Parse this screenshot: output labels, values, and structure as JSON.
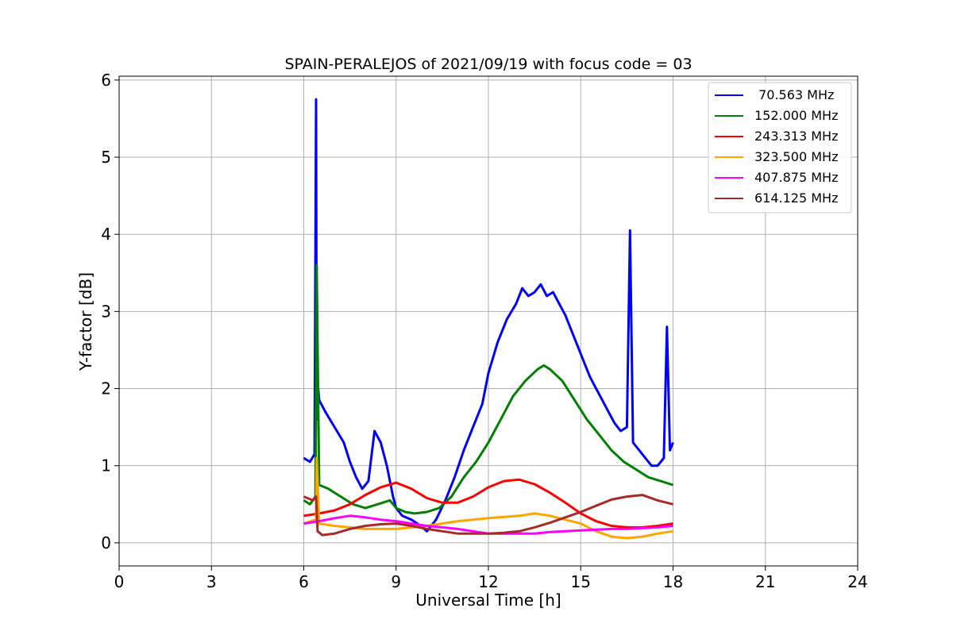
{
  "chart_data": {
    "type": "line",
    "title": "SPAIN-PERALEJOS of 2021/09/19 with focus code = 03",
    "xlabel": "Universal Time [h]",
    "ylabel": "Y-factor [dB]",
    "xlim": [
      0,
      24
    ],
    "ylim": [
      -0.3,
      6.05
    ],
    "xticks": [
      0,
      3,
      6,
      9,
      12,
      15,
      18,
      21,
      24
    ],
    "yticks": [
      0,
      1,
      2,
      3,
      4,
      5,
      6
    ],
    "grid": true,
    "legend_position": "top-right",
    "series": [
      {
        "name": " 70.563 MHz",
        "color": "#0000ff",
        "x": [
          6.0,
          6.2,
          6.35,
          6.4,
          6.42,
          6.45,
          6.5,
          6.7,
          7.0,
          7.3,
          7.5,
          7.7,
          7.9,
          8.1,
          8.3,
          8.5,
          8.7,
          8.9,
          9.0,
          9.2,
          9.5,
          9.8,
          10.0,
          10.3,
          10.6,
          10.9,
          11.2,
          11.5,
          11.8,
          12.0,
          12.3,
          12.6,
          12.9,
          13.1,
          13.3,
          13.5,
          13.7,
          13.9,
          14.1,
          14.3,
          14.5,
          14.7,
          14.9,
          15.1,
          15.3,
          15.5,
          15.7,
          15.9,
          16.1,
          16.3,
          16.5,
          16.6,
          16.7,
          16.9,
          17.1,
          17.3,
          17.5,
          17.7,
          17.8,
          17.9,
          18.0
        ],
        "y": [
          1.1,
          1.05,
          1.15,
          5.75,
          1.6,
          2.1,
          1.85,
          1.7,
          1.5,
          1.3,
          1.05,
          0.85,
          0.7,
          0.8,
          1.45,
          1.3,
          1.0,
          0.6,
          0.45,
          0.35,
          0.3,
          0.22,
          0.15,
          0.3,
          0.55,
          0.85,
          1.2,
          1.5,
          1.8,
          2.2,
          2.6,
          2.9,
          3.1,
          3.3,
          3.2,
          3.25,
          3.35,
          3.2,
          3.25,
          3.1,
          2.95,
          2.75,
          2.55,
          2.35,
          2.15,
          2.0,
          1.85,
          1.7,
          1.55,
          1.45,
          1.5,
          4.05,
          1.3,
          1.2,
          1.1,
          1.0,
          1.0,
          1.1,
          2.8,
          1.2,
          1.3
        ]
      },
      {
        "name": "152.000 MHz",
        "color": "#008000",
        "x": [
          6.0,
          6.2,
          6.38,
          6.42,
          6.5,
          6.8,
          7.2,
          7.6,
          8.0,
          8.4,
          8.8,
          9.0,
          9.3,
          9.6,
          10.0,
          10.4,
          10.8,
          11.2,
          11.6,
          12.0,
          12.4,
          12.8,
          13.2,
          13.6,
          13.8,
          14.0,
          14.4,
          14.8,
          15.2,
          15.6,
          16.0,
          16.4,
          16.8,
          17.2,
          17.6,
          18.0
        ],
        "y": [
          0.55,
          0.5,
          0.6,
          3.6,
          0.75,
          0.7,
          0.6,
          0.5,
          0.45,
          0.5,
          0.55,
          0.45,
          0.4,
          0.38,
          0.4,
          0.45,
          0.6,
          0.85,
          1.05,
          1.3,
          1.6,
          1.9,
          2.1,
          2.25,
          2.3,
          2.25,
          2.1,
          1.85,
          1.6,
          1.4,
          1.2,
          1.05,
          0.95,
          0.85,
          0.8,
          0.75
        ]
      },
      {
        "name": "243.313 MHz",
        "color": "#ff0000",
        "x": [
          6.0,
          6.5,
          7.0,
          7.5,
          8.0,
          8.5,
          9.0,
          9.5,
          10.0,
          10.5,
          11.0,
          11.5,
          12.0,
          12.5,
          13.0,
          13.5,
          14.0,
          14.5,
          15.0,
          15.5,
          16.0,
          16.5,
          17.0,
          17.5,
          18.0
        ],
        "y": [
          0.35,
          0.38,
          0.42,
          0.5,
          0.62,
          0.72,
          0.78,
          0.7,
          0.58,
          0.52,
          0.52,
          0.6,
          0.72,
          0.8,
          0.82,
          0.76,
          0.65,
          0.52,
          0.38,
          0.28,
          0.22,
          0.2,
          0.2,
          0.22,
          0.25
        ]
      },
      {
        "name": "323.500 MHz",
        "color": "#ffa500",
        "x": [
          6.0,
          6.4,
          6.42,
          6.5,
          7.0,
          8.0,
          9.0,
          10.0,
          11.0,
          12.0,
          13.0,
          13.5,
          14.0,
          15.0,
          15.5,
          16.0,
          16.5,
          17.0,
          17.5,
          18.0
        ],
        "y": [
          0.25,
          0.3,
          1.1,
          0.25,
          0.22,
          0.18,
          0.18,
          0.22,
          0.28,
          0.32,
          0.35,
          0.38,
          0.35,
          0.25,
          0.15,
          0.08,
          0.06,
          0.08,
          0.12,
          0.15
        ]
      },
      {
        "name": "407.875 MHz",
        "color": "#ff00ff",
        "x": [
          6.0,
          6.5,
          7.0,
          7.5,
          8.0,
          8.5,
          9.0,
          9.5,
          10.0,
          10.5,
          11.0,
          11.5,
          12.0,
          12.5,
          13.0,
          13.5,
          14.0,
          14.5,
          15.0,
          15.5,
          16.0,
          16.5,
          17.0,
          17.5,
          18.0
        ],
        "y": [
          0.25,
          0.28,
          0.32,
          0.35,
          0.33,
          0.3,
          0.28,
          0.25,
          0.22,
          0.2,
          0.18,
          0.15,
          0.12,
          0.12,
          0.12,
          0.12,
          0.14,
          0.15,
          0.16,
          0.17,
          0.18,
          0.18,
          0.19,
          0.2,
          0.22
        ]
      },
      {
        "name": "614.125 MHz",
        "color": "#a52a2a",
        "x": [
          6.0,
          6.3,
          6.4,
          6.45,
          6.6,
          7.0,
          7.5,
          8.0,
          8.5,
          9.0,
          9.5,
          10.0,
          10.5,
          11.0,
          11.5,
          12.0,
          12.5,
          13.0,
          13.5,
          14.0,
          14.5,
          15.0,
          15.5,
          16.0,
          16.5,
          17.0,
          17.5,
          18.0
        ],
        "y": [
          0.6,
          0.55,
          0.6,
          0.15,
          0.1,
          0.12,
          0.18,
          0.22,
          0.24,
          0.25,
          0.22,
          0.18,
          0.15,
          0.12,
          0.12,
          0.12,
          0.13,
          0.15,
          0.2,
          0.26,
          0.33,
          0.4,
          0.48,
          0.56,
          0.6,
          0.62,
          0.55,
          0.5
        ]
      }
    ]
  }
}
